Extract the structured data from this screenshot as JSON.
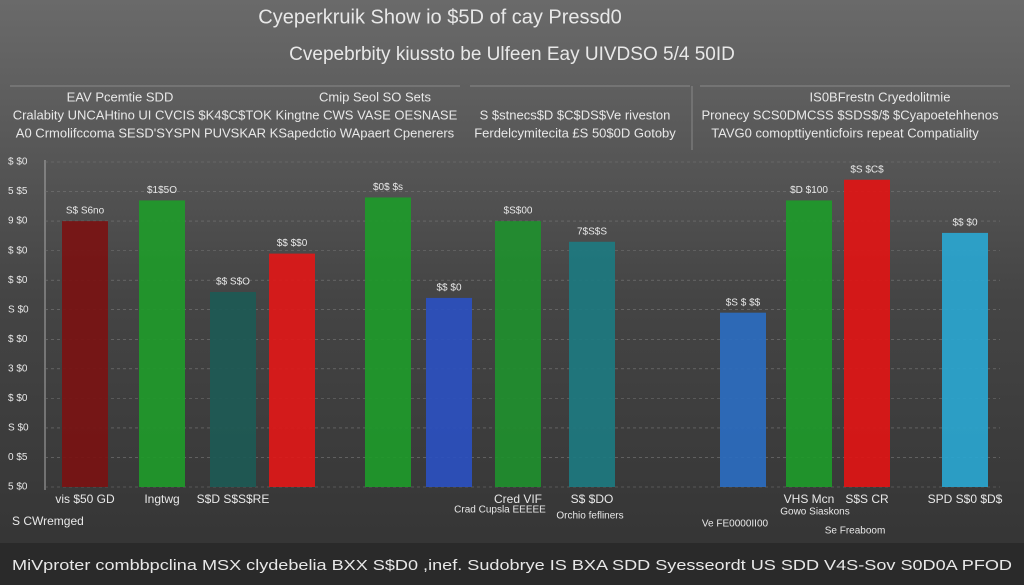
{
  "header": {
    "title": "Cyeperkruik Show io $5D of cay Pressd0",
    "subtitle": "Cvepebrbity kiussto be Ulfeen Eay UIVDSO 5/4 50ID"
  },
  "panels": [
    {
      "lines": [
        "EAV Pcemtie SDD",
        "Cmip Seol SO Sets",
        "Cralabity UNCAHtino UI CVCIS $K4$C$TOK Kingtne CWS VASE OESNASE",
        "A0 Crmolifccoma SESD'SYSPN PUVSKAR KSapedctio WApaert Cpenerers"
      ]
    },
    {
      "lines": [
        "S $stnecs$D $C$DS$Ve riveston",
        "Ferdelcymitecita £S 50$0D Gotoby"
      ]
    },
    {
      "lines": [
        "IS0BFrestn Cryedolitmie",
        "Pronecy SCS0DMCSS $SDS$/$ $Cyapoetehhenos",
        "TAVG0 comopttiyenticfoirs repeat Compatiality"
      ]
    }
  ],
  "chart_data": {
    "type": "bar",
    "categories": [
      "vis $50 GD",
      "Ingtwg",
      "S$D S$S$RE",
      null,
      null,
      null,
      "Cred VIF",
      "S$ $DO",
      null,
      "VHS Mcn",
      "S$S CR",
      "SPD S$0 $D$"
    ],
    "values": [
      90,
      97,
      66,
      79,
      98,
      64,
      90,
      83,
      59,
      97,
      104,
      86
    ],
    "colors": [
      "#7a1212",
      "#1f9a2a",
      "#1d5a55",
      "#e01818",
      "#1e9a2a",
      "#2b50c0",
      "#1f8f2e",
      "#1d7a80",
      "#2b6cc0",
      "#1e9a2a",
      "#e01515",
      "#2aa6d0"
    ],
    "notes": [
      "S$ S6no",
      "$1$5O",
      "$$ S$O",
      "$$ $$0",
      "$0$ $s",
      "$$ $0",
      "$S$00",
      "7$S$S",
      "$S $ $$",
      "$D $100",
      "$S $C$",
      "$$ $0"
    ],
    "ylim": [
      0,
      110
    ],
    "yticks": [
      {
        "value": 0,
        "label": "5 $0"
      },
      {
        "value": 10,
        "label": "0 $5"
      },
      {
        "value": 20,
        "label": "S $0"
      },
      {
        "value": 30,
        "label": "$ $0"
      },
      {
        "value": 40,
        "label": "3 $0"
      },
      {
        "value": 50,
        "label": "$ $0"
      },
      {
        "value": 60,
        "label": "S $0"
      },
      {
        "value": 70,
        "label": "$ $0"
      },
      {
        "value": 80,
        "label": "$ $0"
      },
      {
        "value": 90,
        "label": "9 $0"
      },
      {
        "value": 100,
        "label": "5 $5"
      },
      {
        "value": 110,
        "label": "$ $0"
      }
    ]
  },
  "footer": {
    "caption": "MiVproter combbpclina MSX clydebelia BXX S$D0 ,inef. Sudobrye IS BXA SDD Syesseordt US SDD V4S-Sov S0D0A PFOD",
    "left_note": "S CWremged",
    "sub_labels": [
      "Crad Cupsla EEEEE",
      "Orchio fefliners",
      "Gowo Siaskons",
      "Ve FE0000II00",
      "Se Freaboom"
    ]
  }
}
